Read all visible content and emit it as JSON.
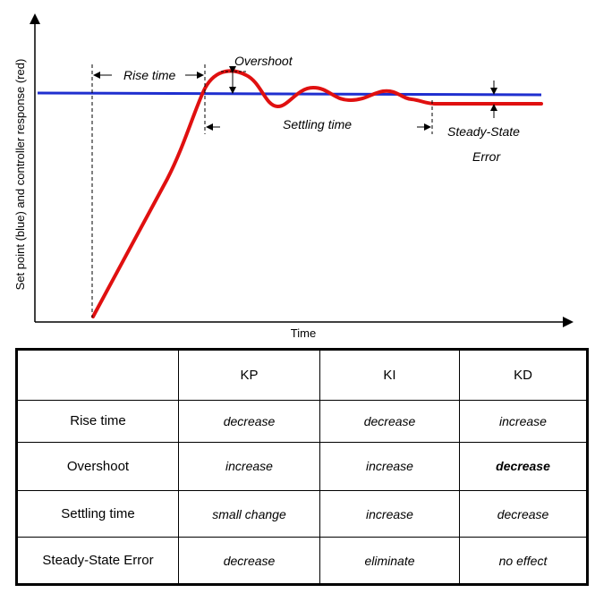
{
  "diagram": {
    "y_axis_label": "Set point (blue) and controller response (red)",
    "x_axis_label": "Time",
    "annotations": {
      "rise_time": "Rise time",
      "overshoot": "Overshoot",
      "settling_time": "Settling time",
      "steady_state_line1": "Steady-State",
      "steady_state_line2": "Error"
    },
    "colors": {
      "set_point": "#1f2fcf",
      "response": "#e01010"
    }
  },
  "table": {
    "header": [
      "",
      "KP",
      "KI",
      "KD"
    ],
    "rows": [
      {
        "label": "Rise time",
        "cells": [
          "decrease",
          "decrease",
          "increase"
        ]
      },
      {
        "label": "Overshoot",
        "cells": [
          "increase",
          "increase",
          "decrease"
        ]
      },
      {
        "label": "Settling time",
        "cells": [
          "small change",
          "increase",
          "decrease"
        ]
      },
      {
        "label": "Steady-State Error",
        "cells": [
          "decrease",
          "eliminate",
          "no effect"
        ]
      }
    ]
  }
}
